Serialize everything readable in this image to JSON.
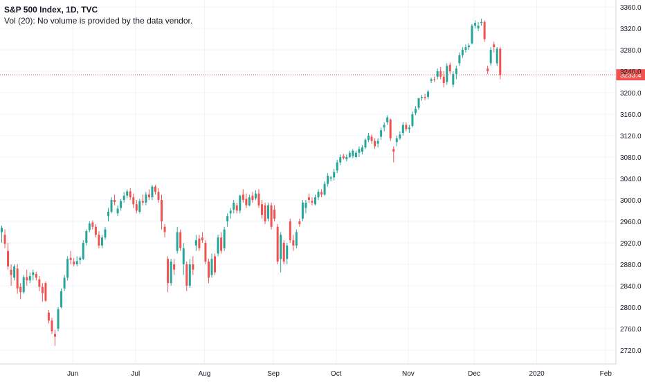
{
  "legend": {
    "title": "S&P 500 Index, 1D, TVC",
    "volume_note": "Vol (20): No volume is provided by the data vendor."
  },
  "colors": {
    "up": "#26a69a",
    "down": "#ef5350",
    "grid": "#f0f3fa",
    "axis_text": "#131722",
    "price_line": "#ef5350",
    "price_badge": "#ef5350"
  },
  "chart_data": {
    "type": "candlestick",
    "title": "S&P 500 Index, 1D, TVC",
    "ylim": [
      2700,
      3370
    ],
    "y_ticks": [
      "2720.0",
      "2760.0",
      "2800.0",
      "2840.0",
      "2880.0",
      "2920.0",
      "2960.0",
      "3000.0",
      "3040.0",
      "3080.0",
      "3120.0",
      "3160.0",
      "3200.0",
      "3240.0",
      "3280.0",
      "3320.0",
      "3360.0"
    ],
    "x_ticks": [
      {
        "label": "Jun",
        "index": 23
      },
      {
        "label": "Jul",
        "index": 43
      },
      {
        "label": "Aug",
        "index": 65
      },
      {
        "label": "Sep",
        "index": 87
      },
      {
        "label": "Oct",
        "index": 107
      },
      {
        "label": "Nov",
        "index": 130
      },
      {
        "label": "Dec",
        "index": 151
      },
      {
        "label": "2020",
        "index": 171
      },
      {
        "label": "Feb",
        "index": 193
      }
    ],
    "last_price": "3233.4",
    "last_price_value": 3233.4,
    "grid": true,
    "candles": [
      {
        "o": 2940,
        "h": 2952,
        "l": 2920,
        "c": 2948
      },
      {
        "o": 2935,
        "h": 2945,
        "l": 2910,
        "c": 2918
      },
      {
        "o": 2905,
        "h": 2920,
        "l": 2870,
        "c": 2876
      },
      {
        "o": 2870,
        "h": 2880,
        "l": 2840,
        "c": 2860
      },
      {
        "o": 2855,
        "h": 2880,
        "l": 2850,
        "c": 2876
      },
      {
        "o": 2872,
        "h": 2880,
        "l": 2825,
        "c": 2835
      },
      {
        "o": 2838,
        "h": 2845,
        "l": 2815,
        "c": 2828
      },
      {
        "o": 2828,
        "h": 2860,
        "l": 2825,
        "c": 2856
      },
      {
        "o": 2856,
        "h": 2870,
        "l": 2840,
        "c": 2850
      },
      {
        "o": 2850,
        "h": 2865,
        "l": 2845,
        "c": 2858
      },
      {
        "o": 2860,
        "h": 2870,
        "l": 2850,
        "c": 2865
      },
      {
        "o": 2862,
        "h": 2866,
        "l": 2850,
        "c": 2855
      },
      {
        "o": 2852,
        "h": 2858,
        "l": 2830,
        "c": 2838
      },
      {
        "o": 2838,
        "h": 2845,
        "l": 2810,
        "c": 2826
      },
      {
        "o": 2845,
        "h": 2848,
        "l": 2810,
        "c": 2812
      },
      {
        "o": 2790,
        "h": 2795,
        "l": 2770,
        "c": 2775
      },
      {
        "o": 2775,
        "h": 2780,
        "l": 2750,
        "c": 2755
      },
      {
        "o": 2750,
        "h": 2758,
        "l": 2728,
        "c": 2745
      },
      {
        "o": 2760,
        "h": 2800,
        "l": 2755,
        "c": 2796
      },
      {
        "o": 2800,
        "h": 2835,
        "l": 2798,
        "c": 2830
      },
      {
        "o": 2835,
        "h": 2860,
        "l": 2830,
        "c": 2855
      },
      {
        "o": 2855,
        "h": 2895,
        "l": 2850,
        "c": 2890
      },
      {
        "o": 2892,
        "h": 2905,
        "l": 2880,
        "c": 2888
      },
      {
        "o": 2885,
        "h": 2892,
        "l": 2876,
        "c": 2880
      },
      {
        "o": 2880,
        "h": 2895,
        "l": 2876,
        "c": 2886
      },
      {
        "o": 2888,
        "h": 2895,
        "l": 2880,
        "c": 2892
      },
      {
        "o": 2890,
        "h": 2925,
        "l": 2888,
        "c": 2920
      },
      {
        "o": 2920,
        "h": 2945,
        "l": 2915,
        "c": 2942
      },
      {
        "o": 2944,
        "h": 2960,
        "l": 2940,
        "c": 2956
      },
      {
        "o": 2958,
        "h": 2962,
        "l": 2945,
        "c": 2950
      },
      {
        "o": 2950,
        "h": 2955,
        "l": 2930,
        "c": 2935
      },
      {
        "o": 2935,
        "h": 2942,
        "l": 2910,
        "c": 2915
      },
      {
        "o": 2915,
        "h": 2935,
        "l": 2910,
        "c": 2930
      },
      {
        "o": 2930,
        "h": 2950,
        "l": 2926,
        "c": 2945
      },
      {
        "o": 2970,
        "h": 2985,
        "l": 2960,
        "c": 2978
      },
      {
        "o": 2978,
        "h": 3005,
        "l": 2975,
        "c": 3000
      },
      {
        "o": 3000,
        "h": 3010,
        "l": 2990,
        "c": 2996
      },
      {
        "o": 2975,
        "h": 2990,
        "l": 2970,
        "c": 2984
      },
      {
        "o": 2985,
        "h": 3002,
        "l": 2980,
        "c": 2998
      },
      {
        "o": 3000,
        "h": 3015,
        "l": 2995,
        "c": 3008
      },
      {
        "o": 3008,
        "h": 3020,
        "l": 3003,
        "c": 3016
      },
      {
        "o": 3016,
        "h": 3022,
        "l": 3000,
        "c": 3005
      },
      {
        "o": 3005,
        "h": 3012,
        "l": 2985,
        "c": 2992
      },
      {
        "o": 2992,
        "h": 3000,
        "l": 2975,
        "c": 2980
      },
      {
        "o": 2978,
        "h": 3002,
        "l": 2975,
        "c": 2998
      },
      {
        "o": 2998,
        "h": 3010,
        "l": 2990,
        "c": 2995
      },
      {
        "o": 2995,
        "h": 3015,
        "l": 2990,
        "c": 3010
      },
      {
        "o": 3010,
        "h": 3020,
        "l": 3000,
        "c": 3005
      },
      {
        "o": 3005,
        "h": 3028,
        "l": 3000,
        "c": 3025
      },
      {
        "o": 3025,
        "h": 3028,
        "l": 3010,
        "c": 3015
      },
      {
        "o": 3015,
        "h": 3022,
        "l": 2995,
        "c": 3000
      },
      {
        "o": 3000,
        "h": 3010,
        "l": 2945,
        "c": 2960
      },
      {
        "o": 2950,
        "h": 2955,
        "l": 2930,
        "c": 2940
      },
      {
        "o": 2890,
        "h": 2895,
        "l": 2828,
        "c": 2845
      },
      {
        "o": 2845,
        "h": 2890,
        "l": 2840,
        "c": 2885
      },
      {
        "o": 2880,
        "h": 2890,
        "l": 2860,
        "c": 2870
      },
      {
        "o": 2905,
        "h": 2950,
        "l": 2900,
        "c": 2940
      },
      {
        "o": 2940,
        "h": 2945,
        "l": 2905,
        "c": 2910
      },
      {
        "o": 2880,
        "h": 2920,
        "l": 2860,
        "c": 2910
      },
      {
        "o": 2880,
        "h": 2885,
        "l": 2830,
        "c": 2840
      },
      {
        "o": 2840,
        "h": 2890,
        "l": 2836,
        "c": 2880
      },
      {
        "o": 2880,
        "h": 2895,
        "l": 2860,
        "c": 2870
      },
      {
        "o": 2915,
        "h": 2935,
        "l": 2905,
        "c": 2925
      },
      {
        "o": 2928,
        "h": 2935,
        "l": 2905,
        "c": 2910
      },
      {
        "o": 2930,
        "h": 2940,
        "l": 2920,
        "c": 2925
      },
      {
        "o": 2920,
        "h": 2925,
        "l": 2880,
        "c": 2885
      },
      {
        "o": 2885,
        "h": 2890,
        "l": 2845,
        "c": 2855
      },
      {
        "o": 2860,
        "h": 2900,
        "l": 2855,
        "c": 2890
      },
      {
        "o": 2895,
        "h": 2900,
        "l": 2860,
        "c": 2865
      },
      {
        "o": 2900,
        "h": 2935,
        "l": 2895,
        "c": 2930
      },
      {
        "o": 2930,
        "h": 2940,
        "l": 2900,
        "c": 2905
      },
      {
        "o": 2910,
        "h": 2950,
        "l": 2905,
        "c": 2945
      },
      {
        "o": 2960,
        "h": 2975,
        "l": 2950,
        "c": 2970
      },
      {
        "o": 2975,
        "h": 2985,
        "l": 2965,
        "c": 2980
      },
      {
        "o": 2982,
        "h": 3000,
        "l": 2975,
        "c": 2995
      },
      {
        "o": 2990,
        "h": 2995,
        "l": 2975,
        "c": 2980
      },
      {
        "o": 2980,
        "h": 3010,
        "l": 2975,
        "c": 3008
      },
      {
        "o": 3010,
        "h": 3020,
        "l": 2995,
        "c": 3000
      },
      {
        "o": 3002,
        "h": 3012,
        "l": 2985,
        "c": 2990
      },
      {
        "o": 2990,
        "h": 3010,
        "l": 2988,
        "c": 3005
      },
      {
        "o": 3008,
        "h": 3015,
        "l": 2995,
        "c": 3000
      },
      {
        "o": 3003,
        "h": 3018,
        "l": 3000,
        "c": 3012
      },
      {
        "o": 3012,
        "h": 3020,
        "l": 2985,
        "c": 2990
      },
      {
        "o": 2992,
        "h": 3000,
        "l": 2965,
        "c": 2972
      },
      {
        "o": 2990,
        "h": 2995,
        "l": 2955,
        "c": 2960
      },
      {
        "o": 2965,
        "h": 2995,
        "l": 2960,
        "c": 2990
      },
      {
        "o": 2990,
        "h": 2995,
        "l": 2945,
        "c": 2950
      },
      {
        "o": 2982,
        "h": 2990,
        "l": 2960,
        "c": 2965
      },
      {
        "o": 2950,
        "h": 2955,
        "l": 2880,
        "c": 2885
      },
      {
        "o": 2890,
        "h": 2940,
        "l": 2865,
        "c": 2935
      },
      {
        "o": 2920,
        "h": 2925,
        "l": 2880,
        "c": 2885
      },
      {
        "o": 2890,
        "h": 2920,
        "l": 2880,
        "c": 2915
      },
      {
        "o": 2960,
        "h": 2965,
        "l": 2920,
        "c": 2925
      },
      {
        "o": 2925,
        "h": 2935,
        "l": 2905,
        "c": 2915
      },
      {
        "o": 2915,
        "h": 2945,
        "l": 2910,
        "c": 2940
      },
      {
        "o": 2960,
        "h": 2965,
        "l": 2950,
        "c": 2955
      },
      {
        "o": 2965,
        "h": 3000,
        "l": 2960,
        "c": 2995
      },
      {
        "o": 2985,
        "h": 3000,
        "l": 2975,
        "c": 2995
      },
      {
        "o": 3005,
        "h": 3012,
        "l": 2995,
        "c": 3000
      },
      {
        "o": 2998,
        "h": 3005,
        "l": 2990,
        "c": 2995
      },
      {
        "o": 2992,
        "h": 3010,
        "l": 2990,
        "c": 3005
      },
      {
        "o": 3005,
        "h": 3020,
        "l": 3000,
        "c": 3015
      },
      {
        "o": 3015,
        "h": 3020,
        "l": 3005,
        "c": 3010
      },
      {
        "o": 3010,
        "h": 3035,
        "l": 3008,
        "c": 3030
      },
      {
        "o": 3030,
        "h": 3050,
        "l": 3025,
        "c": 3045
      },
      {
        "o": 3040,
        "h": 3045,
        "l": 3035,
        "c": 3042
      },
      {
        "o": 3042,
        "h": 3058,
        "l": 3036,
        "c": 3052
      },
      {
        "o": 3055,
        "h": 3075,
        "l": 3050,
        "c": 3070
      },
      {
        "o": 3070,
        "h": 3085,
        "l": 3065,
        "c": 3080
      },
      {
        "o": 3082,
        "h": 3086,
        "l": 3075,
        "c": 3078
      },
      {
        "o": 3076,
        "h": 3085,
        "l": 3072,
        "c": 3080
      },
      {
        "o": 3080,
        "h": 3092,
        "l": 3078,
        "c": 3088
      },
      {
        "o": 3082,
        "h": 3095,
        "l": 3078,
        "c": 3092
      },
      {
        "o": 3080,
        "h": 3092,
        "l": 3078,
        "c": 3088
      },
      {
        "o": 3088,
        "h": 3100,
        "l": 3080,
        "c": 3095
      },
      {
        "o": 3090,
        "h": 3102,
        "l": 3085,
        "c": 3098
      },
      {
        "o": 3098,
        "h": 3115,
        "l": 3095,
        "c": 3112
      },
      {
        "o": 3112,
        "h": 3125,
        "l": 3108,
        "c": 3120
      },
      {
        "o": 3118,
        "h": 3122,
        "l": 3105,
        "c": 3110
      },
      {
        "o": 3110,
        "h": 3115,
        "l": 3095,
        "c": 3100
      },
      {
        "o": 3105,
        "h": 3115,
        "l": 3098,
        "c": 3110
      },
      {
        "o": 3118,
        "h": 3135,
        "l": 3112,
        "c": 3130
      },
      {
        "o": 3135,
        "h": 3145,
        "l": 3128,
        "c": 3140
      },
      {
        "o": 3145,
        "h": 3158,
        "l": 3140,
        "c": 3154
      },
      {
        "o": 3150,
        "h": 3152,
        "l": 3110,
        "c": 3115
      },
      {
        "o": 3095,
        "h": 3100,
        "l": 3070,
        "c": 3090
      },
      {
        "o": 3108,
        "h": 3120,
        "l": 3100,
        "c": 3115
      },
      {
        "o": 3115,
        "h": 3128,
        "l": 3112,
        "c": 3122
      },
      {
        "o": 3125,
        "h": 3145,
        "l": 3120,
        "c": 3140
      },
      {
        "o": 3140,
        "h": 3145,
        "l": 3128,
        "c": 3132
      },
      {
        "o": 3132,
        "h": 3140,
        "l": 3125,
        "c": 3135
      },
      {
        "o": 3138,
        "h": 3165,
        "l": 3135,
        "c": 3160
      },
      {
        "o": 3162,
        "h": 3175,
        "l": 3158,
        "c": 3170
      },
      {
        "o": 3172,
        "h": 3190,
        "l": 3168,
        "c": 3190
      },
      {
        "o": 3190,
        "h": 3196,
        "l": 3185,
        "c": 3192
      },
      {
        "o": 3192,
        "h": 3198,
        "l": 3186,
        "c": 3190
      },
      {
        "o": 3192,
        "h": 3205,
        "l": 3188,
        "c": 3202
      },
      {
        "o": 3222,
        "h": 3228,
        "l": 3218,
        "c": 3225
      },
      {
        "o": 3225,
        "h": 3230,
        "l": 3220,
        "c": 3224
      },
      {
        "o": 3230,
        "h": 3245,
        "l": 3225,
        "c": 3240
      },
      {
        "o": 3240,
        "h": 3248,
        "l": 3225,
        "c": 3230
      },
      {
        "o": 3230,
        "h": 3240,
        "l": 3210,
        "c": 3218
      },
      {
        "o": 3220,
        "h": 3255,
        "l": 3215,
        "c": 3250
      },
      {
        "o": 3252,
        "h": 3256,
        "l": 3235,
        "c": 3240
      },
      {
        "o": 3215,
        "h": 3240,
        "l": 3210,
        "c": 3235
      },
      {
        "o": 3235,
        "h": 3250,
        "l": 3225,
        "c": 3245
      },
      {
        "o": 3255,
        "h": 3275,
        "l": 3250,
        "c": 3270
      },
      {
        "o": 3270,
        "h": 3285,
        "l": 3265,
        "c": 3280
      },
      {
        "o": 3280,
        "h": 3290,
        "l": 3275,
        "c": 3285
      },
      {
        "o": 3285,
        "h": 3292,
        "l": 3280,
        "c": 3288
      },
      {
        "o": 3292,
        "h": 3328,
        "l": 3290,
        "c": 3325
      },
      {
        "o": 3325,
        "h": 3335,
        "l": 3320,
        "c": 3330
      },
      {
        "o": 3320,
        "h": 3332,
        "l": 3315,
        "c": 3325
      },
      {
        "o": 3330,
        "h": 3338,
        "l": 3325,
        "c": 3332
      },
      {
        "o": 3332,
        "h": 3335,
        "l": 3295,
        "c": 3300
      },
      {
        "o": 3245,
        "h": 3250,
        "l": 3235,
        "c": 3240
      },
      {
        "o": 3255,
        "h": 3285,
        "l": 3250,
        "c": 3280
      },
      {
        "o": 3290,
        "h": 3295,
        "l": 3275,
        "c": 3285
      },
      {
        "o": 3255,
        "h": 3285,
        "l": 3250,
        "c": 3282
      },
      {
        "o": 3282,
        "h": 3285,
        "l": 3225,
        "c": 3233
      }
    ]
  }
}
